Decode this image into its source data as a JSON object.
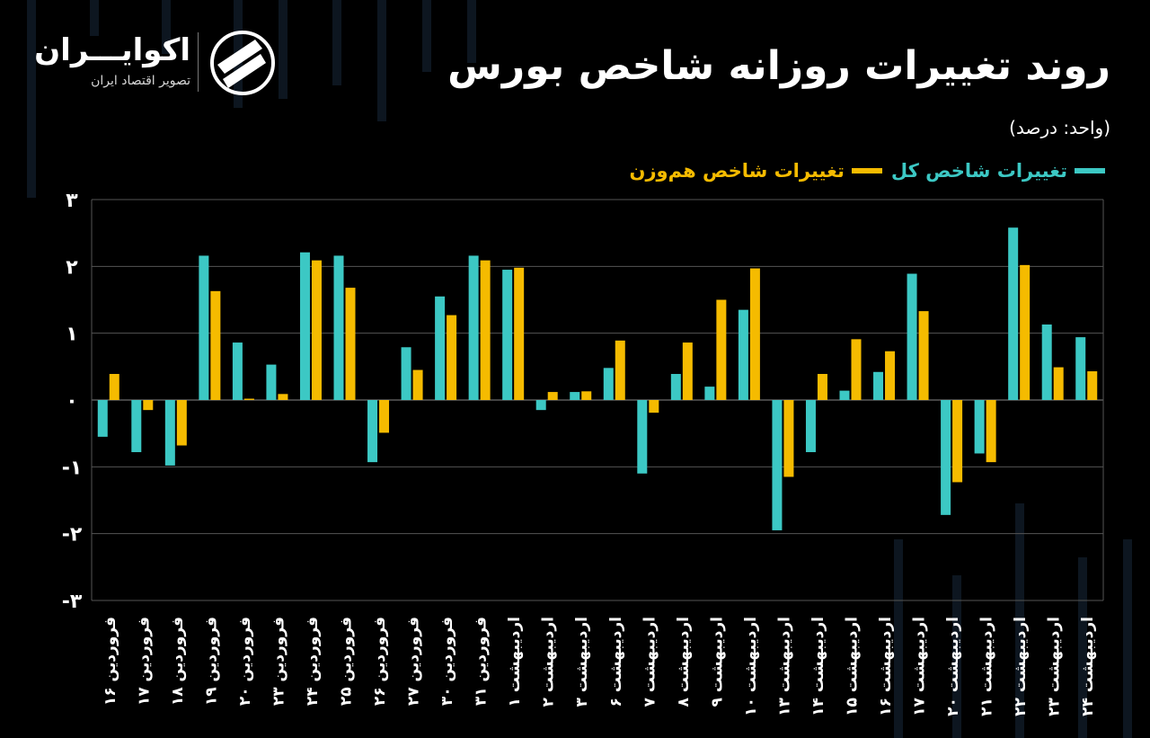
{
  "brand": {
    "name": "اکوایـــران",
    "subtitle": "تصویر اقتصاد ایران"
  },
  "title": "روند تغییرات روزانه شاخص بورس",
  "unit_label": "(واحد: درصد)",
  "colors": {
    "background": "#000000",
    "total_index": "#3cc8c4",
    "equal_weight_index": "#f5bb00",
    "grid": "#555555",
    "text": "#ffffff"
  },
  "chart_data": {
    "type": "bar",
    "categories": [
      "فروردین ۱۶",
      "فروردین ۱۷",
      "فروردین ۱۸",
      "فروردین ۱۹",
      "فروردین ۲۰",
      "فروردین ۲۳",
      "فروردین ۲۴",
      "فروردین ۲۵",
      "فروردین ۲۶",
      "فروردین ۲۷",
      "فروردین ۳۰",
      "فروردین ۳۱",
      "اردیبهشت ۱",
      "اردیبهشت ۲",
      "اردیبهشت ۳",
      "اردیبهشت ۶",
      "اردیبهشت ۷",
      "اردیبهشت ۸",
      "اردیبهشت ۹",
      "اردیبهشت ۱۰",
      "اردیبهشت ۱۳",
      "اردیبهشت ۱۴",
      "اردیبهشت ۱۵",
      "اردیبهشت ۱۶",
      "اردیبهشت ۱۷",
      "اردیبهشت ۲۰",
      "اردیبهشت ۲۱",
      "اردیبهشت ۲۲",
      "اردیبهشت ۲۳",
      "اردیبهشت ۲۴"
    ],
    "series": [
      {
        "name": "تغییرات شاخص کل",
        "color": "#3cc8c4",
        "values": [
          -0.55,
          -0.78,
          -0.98,
          2.16,
          0.86,
          0.53,
          2.21,
          2.16,
          -0.93,
          0.79,
          1.55,
          2.16,
          1.95,
          -0.15,
          0.12,
          0.48,
          -1.1,
          0.39,
          0.2,
          1.35,
          -1.95,
          -0.78,
          0.14,
          0.42,
          1.89,
          -1.72,
          -0.8,
          2.58,
          1.13,
          0.94
        ]
      },
      {
        "name": "تغییرات شاخص هم‌وزن",
        "color": "#f5bb00",
        "values": [
          0.39,
          -0.15,
          -0.68,
          1.63,
          0.02,
          0.09,
          2.09,
          1.68,
          -0.49,
          0.45,
          1.27,
          2.09,
          1.98,
          0.12,
          0.13,
          0.89,
          -0.19,
          0.86,
          1.5,
          1.97,
          -1.15,
          0.39,
          0.91,
          0.73,
          1.33,
          -1.23,
          -0.93,
          2.02,
          0.49,
          0.43
        ]
      }
    ],
    "yticks": [
      "۳",
      "۲",
      "۱",
      "۰",
      "-۱",
      "-۲",
      "-۳"
    ],
    "ylim": [
      -3,
      3
    ],
    "grid": true
  }
}
